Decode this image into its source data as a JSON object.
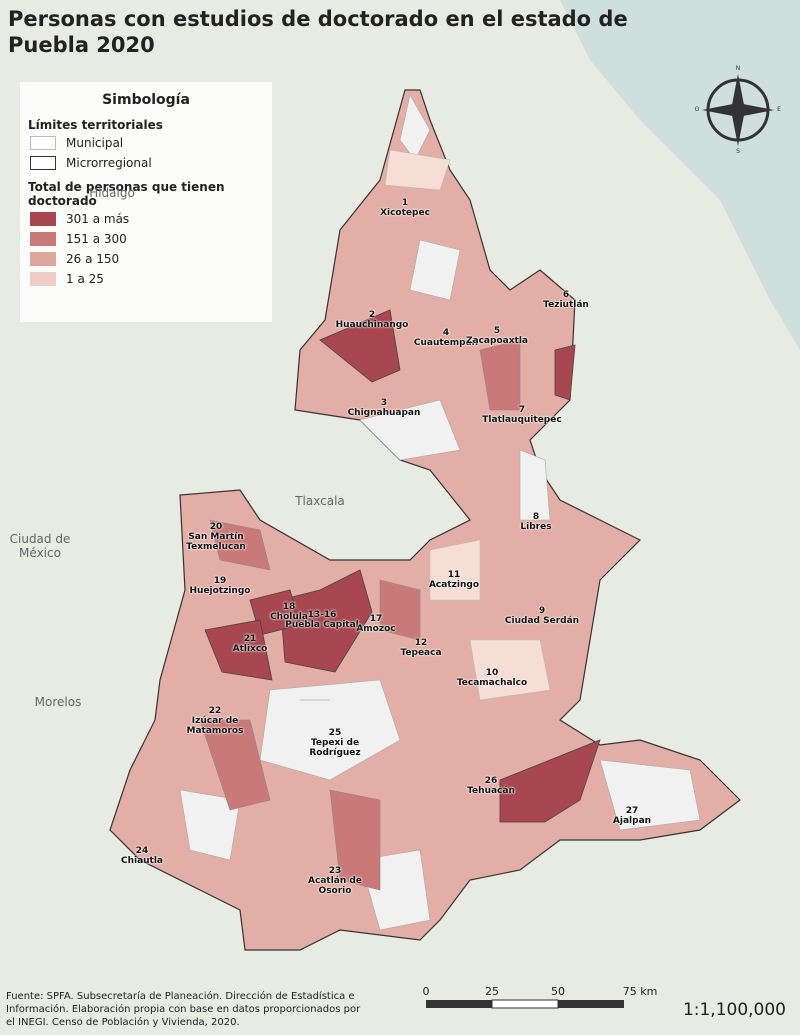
{
  "title": "Personas con estudios de doctorado en el estado de Puebla 2020",
  "legend": {
    "title": "Simbología",
    "boundaries_title": "Límites territoriales",
    "boundaries": [
      {
        "label": "Municipal",
        "stroke": "#bbbbbb"
      },
      {
        "label": "Microrregional",
        "stroke": "#333333"
      }
    ],
    "classes_title": "Total de personas que tienen doctorado",
    "classes": [
      {
        "label": "301 a más",
        "color": "#a8474f"
      },
      {
        "label": "151 a 300",
        "color": "#c97a78"
      },
      {
        "label": "26 a 150",
        "color": "#dea79e"
      },
      {
        "label": "1 a 25",
        "color": "#efcdc4"
      }
    ]
  },
  "regions": [
    {
      "number": "1",
      "name": "Xicotepec"
    },
    {
      "number": "2",
      "name": "Huauchinango"
    },
    {
      "number": "3",
      "name": "Chignahuapan"
    },
    {
      "number": "4",
      "name": "Cuautempan"
    },
    {
      "number": "5",
      "name": "Zacapoaxtla"
    },
    {
      "number": "6",
      "name": "Teziutlán"
    },
    {
      "number": "7",
      "name": "Tlatlauquitepec"
    },
    {
      "number": "8",
      "name": "Libres"
    },
    {
      "number": "9",
      "name": "Ciudad Serdán"
    },
    {
      "number": "10",
      "name": "Tecamachalco"
    },
    {
      "number": "11",
      "name": "Acatzingo"
    },
    {
      "number": "12",
      "name": "Tepeaca"
    },
    {
      "number": "13-16",
      "name": "Puebla Capital"
    },
    {
      "number": "17",
      "name": "Amozoc"
    },
    {
      "number": "18",
      "name": "Cholula"
    },
    {
      "number": "19",
      "name": "Huejotzingo"
    },
    {
      "number": "20",
      "name": "San Martín Texmelucan"
    },
    {
      "number": "21",
      "name": "Atlixco"
    },
    {
      "number": "22",
      "name": "Izúcar de Matamoros"
    },
    {
      "number": "23",
      "name": "Acatlán de Osorio"
    },
    {
      "number": "24",
      "name": "Chiautla"
    },
    {
      "number": "25",
      "name": "Tepexi de Rodríguez"
    },
    {
      "number": "26",
      "name": "Tehuacán"
    },
    {
      "number": "27",
      "name": "Ajalpan"
    }
  ],
  "neighbors": [
    "Hidalgo",
    "Tlaxcala",
    "Ciudad de México",
    "Morelos"
  ],
  "compass": [
    "N",
    "O",
    "E",
    "S"
  ],
  "scale": {
    "ticks": [
      "0",
      "25",
      "50",
      "75 km"
    ],
    "ratio": "1:1,100,000"
  },
  "source": "Fuente: SPFA. Subsecretaría de Planeación. Dirección de Estadística e Información. Elaboración propia con base en datos proporcionados por el INEGI. Censo de Población y Vivienda, 2020."
}
